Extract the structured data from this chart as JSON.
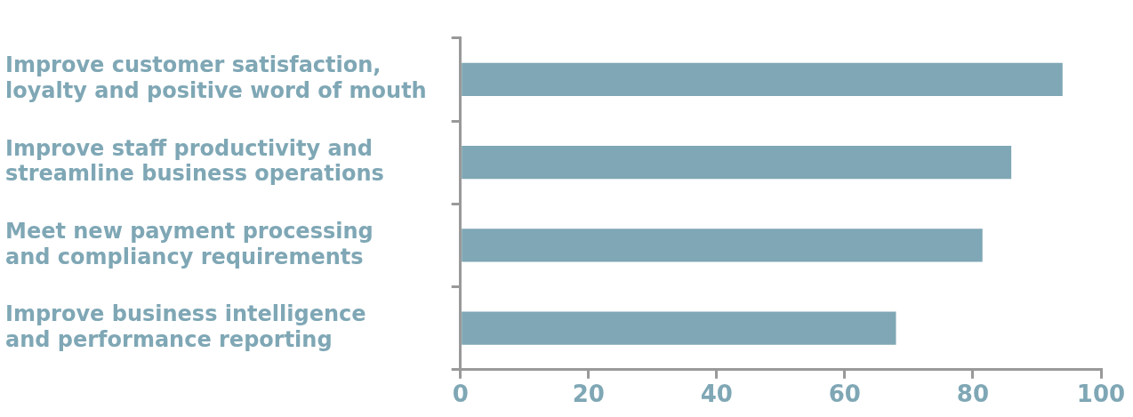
{
  "chart_data": {
    "type": "bar",
    "orientation": "horizontal",
    "categories": [
      "Improve customer satisfaction, loyalty and positive word of mouth",
      "Improve staff productivity and streamline business operations",
      "Meet new payment processing and compliancy requirements",
      "Improve business intelligence and performance reporting"
    ],
    "values": [
      94,
      86,
      81.5,
      68
    ],
    "color": "#7fa7b5",
    "xlim": [
      0,
      100
    ],
    "xticks": [
      0,
      20,
      40,
      60,
      80,
      100
    ],
    "grid": false,
    "legend": false
  }
}
